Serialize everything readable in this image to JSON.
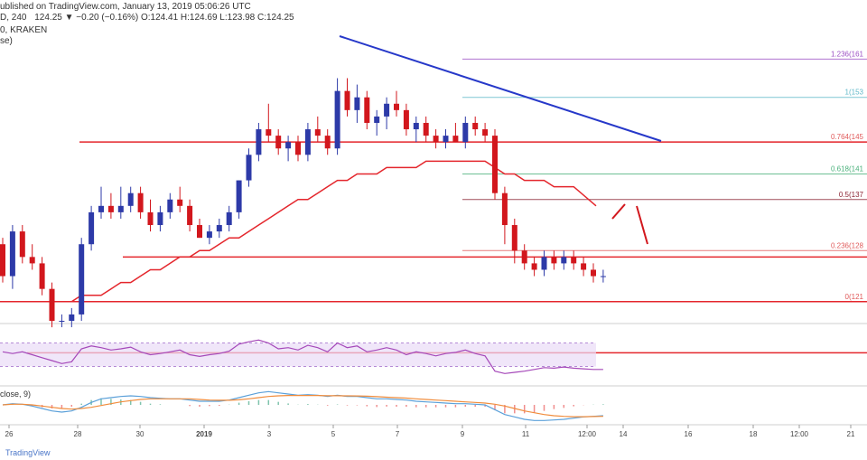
{
  "header": {
    "line1": "ublished on TradingView.com, January 13, 2019 05:06:26 UTC",
    "line2_symbol": "D, 240",
    "line2_change": "124.25 ▼ −0.20 (−0.16%) O:124.41 H:124.69 L:123.98 C:124.25",
    "line3": "0, KRAKEN",
    "line4": "se)"
  },
  "watermark": "TradingView",
  "colors": {
    "up_candle": "#2d3aa8",
    "down_candle": "#d2171d",
    "horizontal_level": "#e4262c",
    "trendline": "#2638c9",
    "ema_fast": "#e4262c",
    "fib_top": "#9c4fc4",
    "fib_mid": "#5fb8c9",
    "fib_618": "#49b07a",
    "fib_05": "#8a2030",
    "fib_0236": "#e05a5a",
    "rsi_line": "#a548b9",
    "rsi_band": "#eadcf6",
    "macd_line": "#5ba0d9",
    "signal_line": "#f08c3c"
  },
  "chart_data": {
    "type": "candlestick",
    "main": {
      "x_ticks": [
        "26",
        "28",
        "30",
        "2019",
        "3",
        "5",
        "7",
        "9",
        "11",
        "12:00",
        "14",
        "16",
        "18",
        "12:00",
        "21"
      ],
      "ylim": [
        118,
        164
      ],
      "candles": [
        [
          130,
          131,
          124,
          125
        ],
        [
          125,
          133,
          123,
          132
        ],
        [
          132,
          133,
          127,
          128
        ],
        [
          128,
          130,
          126,
          127
        ],
        [
          127,
          128,
          122,
          123
        ],
        [
          123,
          124,
          117,
          118
        ],
        [
          118,
          119,
          117,
          118
        ],
        [
          118,
          120,
          117,
          119
        ],
        [
          119,
          131,
          118,
          130
        ],
        [
          130,
          136,
          129,
          135
        ],
        [
          135,
          139,
          134,
          136
        ],
        [
          136,
          138,
          134,
          135
        ],
        [
          135,
          139,
          134,
          136
        ],
        [
          136,
          139,
          135,
          138
        ],
        [
          138,
          139,
          134,
          135
        ],
        [
          135,
          137,
          132,
          133
        ],
        [
          133,
          136,
          132,
          135
        ],
        [
          135,
          138,
          134,
          137
        ],
        [
          137,
          139,
          135,
          136
        ],
        [
          136,
          137,
          132,
          133
        ],
        [
          133,
          134,
          131,
          131
        ],
        [
          131,
          133,
          130,
          132
        ],
        [
          132,
          134,
          131,
          133
        ],
        [
          133,
          136,
          132,
          135
        ],
        [
          135,
          140,
          134,
          140
        ],
        [
          140,
          145,
          139,
          144
        ],
        [
          144,
          149,
          143,
          148
        ],
        [
          148,
          152,
          146,
          147
        ],
        [
          147,
          148,
          144,
          145
        ],
        [
          145,
          147,
          143,
          146
        ],
        [
          146,
          147,
          143,
          144
        ],
        [
          144,
          149,
          143,
          148
        ],
        [
          148,
          150,
          146,
          147
        ],
        [
          147,
          148,
          144,
          145
        ],
        [
          145,
          156,
          144,
          154
        ],
        [
          154,
          156,
          150,
          151
        ],
        [
          151,
          155,
          149,
          153
        ],
        [
          153,
          154,
          148,
          149
        ],
        [
          149,
          151,
          147,
          150
        ],
        [
          150,
          153,
          148,
          152
        ],
        [
          152,
          154,
          150,
          151
        ],
        [
          151,
          152,
          147,
          148
        ],
        [
          148,
          150,
          146,
          149
        ],
        [
          149,
          150,
          146,
          147
        ],
        [
          147,
          148,
          145,
          146
        ],
        [
          146,
          148,
          145,
          147
        ],
        [
          147,
          149,
          146,
          146
        ],
        [
          146,
          150,
          145,
          149
        ],
        [
          149,
          150,
          147,
          148
        ],
        [
          148,
          149,
          146,
          147
        ],
        [
          147,
          148,
          137,
          138
        ],
        [
          138,
          139,
          130,
          133
        ],
        [
          133,
          134,
          127,
          129
        ],
        [
          129,
          130,
          126,
          127
        ],
        [
          127,
          128,
          125,
          126
        ],
        [
          126,
          129,
          125,
          128
        ],
        [
          128,
          129,
          126,
          127
        ],
        [
          127,
          129,
          126,
          128
        ],
        [
          128,
          129,
          126,
          127
        ],
        [
          127,
          128,
          125,
          126
        ],
        [
          126,
          127,
          124,
          125
        ],
        [
          125,
          126,
          124,
          125
        ]
      ],
      "ema_fast": [
        121,
        121,
        121,
        121,
        121,
        121,
        121,
        121,
        122,
        122,
        122,
        123,
        124,
        124,
        125,
        126,
        126,
        127,
        128,
        128,
        129,
        129,
        130,
        131,
        131,
        132,
        133,
        134,
        135,
        136,
        137,
        137,
        138,
        139,
        140,
        140,
        141,
        141,
        141,
        142,
        142,
        142,
        142,
        143,
        143,
        143,
        143,
        143,
        143,
        143,
        142,
        141,
        141,
        140,
        140,
        140,
        139,
        139,
        139
      ],
      "horizontal_levels": [
        128,
        121,
        124
      ],
      "trendline": {
        "from": [
          16,
          160
        ],
        "to": [
          53,
          140
        ]
      },
      "fib_levels": [
        {
          "label": "1.236(161",
          "value": 159
        },
        {
          "label": "1(153",
          "value": 153
        },
        {
          "label": "0.764(145",
          "value": 146
        },
        {
          "label": "0.618(141",
          "value": 141
        },
        {
          "label": "0.5(137",
          "value": 137
        },
        {
          "label": "0.236(128",
          "value": 129
        },
        {
          "label": "0(121",
          "value": 121
        }
      ]
    },
    "rsi": {
      "ylim": [
        0,
        100
      ],
      "band": [
        30,
        70
      ],
      "values": [
        55,
        52,
        55,
        50,
        45,
        40,
        35,
        38,
        60,
        65,
        62,
        58,
        60,
        63,
        55,
        50,
        52,
        55,
        58,
        50,
        47,
        50,
        52,
        56,
        68,
        72,
        75,
        70,
        60,
        62,
        58,
        66,
        62,
        55,
        70,
        62,
        65,
        55,
        58,
        62,
        58,
        50,
        55,
        52,
        48,
        52,
        54,
        58,
        52,
        48,
        22,
        18,
        20,
        22,
        25,
        28,
        27,
        29,
        27,
        26,
        25,
        25
      ]
    },
    "macd": {
      "ylim": [
        -1.5,
        1.5
      ],
      "macd_line": [
        0.0,
        0.1,
        0.05,
        -0.1,
        -0.3,
        -0.5,
        -0.6,
        -0.5,
        -0.2,
        0.2,
        0.5,
        0.6,
        0.7,
        0.75,
        0.7,
        0.6,
        0.55,
        0.5,
        0.5,
        0.4,
        0.3,
        0.3,
        0.3,
        0.4,
        0.6,
        0.8,
        1.0,
        1.1,
        1.0,
        0.9,
        0.8,
        0.85,
        0.8,
        0.7,
        0.8,
        0.7,
        0.7,
        0.6,
        0.5,
        0.5,
        0.45,
        0.4,
        0.3,
        0.25,
        0.2,
        0.15,
        0.1,
        0.1,
        0.05,
        0.0,
        -0.4,
        -0.8,
        -1.0,
        -1.2,
        -1.3,
        -1.3,
        -1.25,
        -1.2,
        -1.1,
        -1.0,
        -0.95,
        -0.9
      ],
      "signal_line": [
        0.0,
        0.05,
        0.05,
        0.0,
        -0.1,
        -0.2,
        -0.3,
        -0.35,
        -0.3,
        -0.2,
        -0.05,
        0.1,
        0.25,
        0.35,
        0.45,
        0.5,
        0.5,
        0.5,
        0.5,
        0.5,
        0.45,
        0.4,
        0.38,
        0.38,
        0.42,
        0.5,
        0.6,
        0.7,
        0.75,
        0.78,
        0.78,
        0.78,
        0.78,
        0.76,
        0.76,
        0.75,
        0.74,
        0.72,
        0.68,
        0.64,
        0.6,
        0.56,
        0.5,
        0.45,
        0.4,
        0.35,
        0.3,
        0.25,
        0.2,
        0.15,
        0.05,
        -0.1,
        -0.3,
        -0.5,
        -0.65,
        -0.8,
        -0.9,
        -0.95,
        -0.98,
        -0.98,
        -0.97,
        -0.95
      ]
    },
    "macd_label": "close, 9)"
  }
}
